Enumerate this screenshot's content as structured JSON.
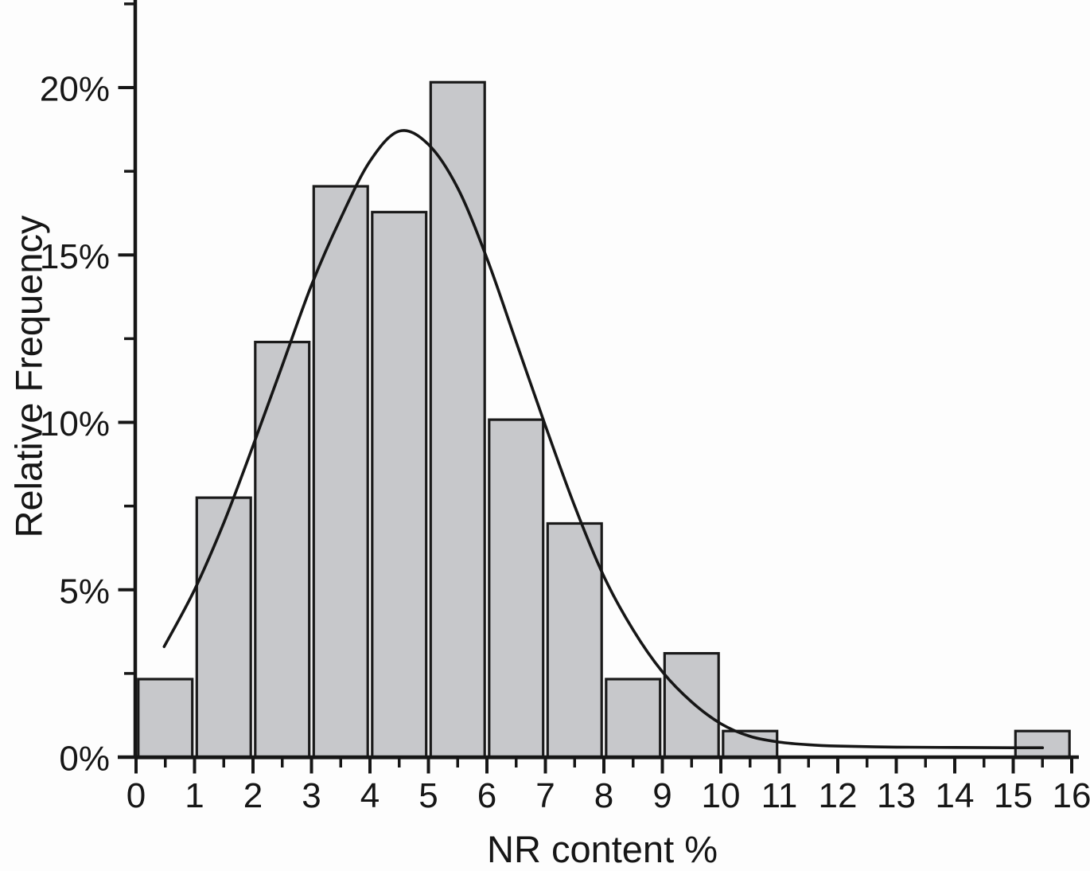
{
  "figure": {
    "background": "#fdfdfd",
    "ink_color": "#161616",
    "bar_fill_color": "#c7c8cb",
    "bar_border_color": "#1a1a1a"
  },
  "chart_data": {
    "type": "bar",
    "subtype": "histogram-with-fit-curve",
    "title": "",
    "xlabel": "NR content %",
    "ylabel": "Relative Frequency",
    "x_range": [
      0,
      16
    ],
    "y_range_percent": [
      0,
      22.5
    ],
    "grid": false,
    "legend": "none",
    "x_tick_labels": [
      "0",
      "1",
      "2",
      "3",
      "4",
      "5",
      "6",
      "7",
      "8",
      "9",
      "10",
      "11",
      "12",
      "13",
      "14",
      "15",
      "16"
    ],
    "x_major_ticks": [
      0,
      1,
      2,
      3,
      4,
      5,
      6,
      7,
      8,
      9,
      10,
      11,
      12,
      13,
      14,
      15,
      16
    ],
    "x_minor_tick_step": 0.5,
    "y_tick_labels": [
      "0%",
      "5%",
      "10%",
      "15%",
      "20%"
    ],
    "y_major_ticks_percent": [
      0,
      5,
      10,
      15,
      20
    ],
    "y_minor_tick_step_percent": 2.5,
    "bins": [
      {
        "x0": 0,
        "x1": 1,
        "percent": 2.33
      },
      {
        "x0": 1,
        "x1": 2,
        "percent": 7.75
      },
      {
        "x0": 2,
        "x1": 3,
        "percent": 12.4
      },
      {
        "x0": 3,
        "x1": 4,
        "percent": 17.05
      },
      {
        "x0": 4,
        "x1": 5,
        "percent": 16.28
      },
      {
        "x0": 5,
        "x1": 6,
        "percent": 20.16
      },
      {
        "x0": 6,
        "x1": 7,
        "percent": 10.08
      },
      {
        "x0": 7,
        "x1": 8,
        "percent": 6.98
      },
      {
        "x0": 8,
        "x1": 9,
        "percent": 2.33
      },
      {
        "x0": 9,
        "x1": 10,
        "percent": 3.1
      },
      {
        "x0": 10,
        "x1": 11,
        "percent": 0.78
      },
      {
        "x0": 11,
        "x1": 12,
        "percent": 0
      },
      {
        "x0": 12,
        "x1": 13,
        "percent": 0
      },
      {
        "x0": 13,
        "x1": 14,
        "percent": 0
      },
      {
        "x0": 14,
        "x1": 15,
        "percent": 0
      },
      {
        "x0": 15,
        "x1": 16,
        "percent": 0.78
      }
    ],
    "fit_curve": {
      "shape": "right-skewed bell, peak approx (4.5, 18.7%)",
      "points": [
        [
          0.48,
          3.3
        ],
        [
          1.0,
          5.0
        ],
        [
          1.5,
          7.0
        ],
        [
          2.0,
          9.3
        ],
        [
          2.5,
          11.7
        ],
        [
          3.0,
          14.1
        ],
        [
          3.5,
          16.1
        ],
        [
          4.0,
          17.8
        ],
        [
          4.5,
          18.7
        ],
        [
          5.0,
          18.3
        ],
        [
          5.5,
          17.0
        ],
        [
          6.0,
          14.9
        ],
        [
          6.5,
          12.4
        ],
        [
          7.0,
          9.9
        ],
        [
          7.5,
          7.5
        ],
        [
          8.0,
          5.4
        ],
        [
          8.5,
          3.8
        ],
        [
          9.0,
          2.55
        ],
        [
          9.5,
          1.65
        ],
        [
          10.0,
          1.0
        ],
        [
          10.5,
          0.62
        ],
        [
          11.0,
          0.45
        ],
        [
          11.5,
          0.37
        ],
        [
          12.0,
          0.33
        ],
        [
          13.0,
          0.3
        ],
        [
          14.0,
          0.29
        ],
        [
          15.0,
          0.28
        ],
        [
          15.5,
          0.28
        ]
      ]
    }
  }
}
